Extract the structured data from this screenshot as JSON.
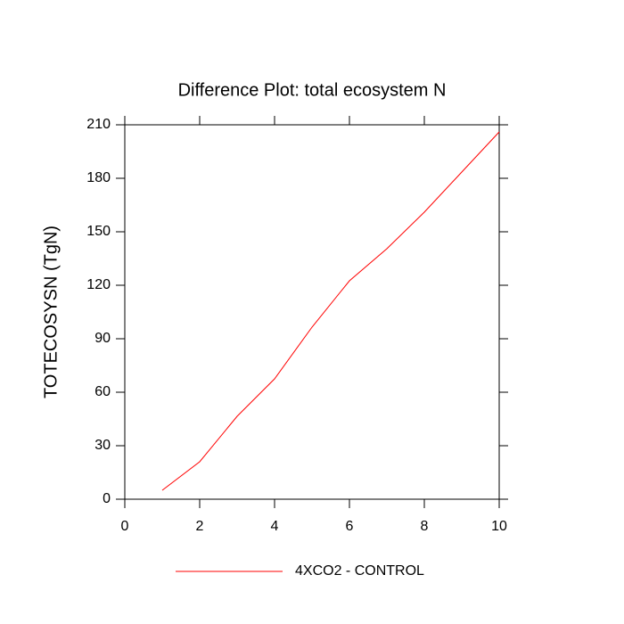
{
  "chart_data": {
    "type": "line",
    "title": "Difference Plot: total ecosystem N",
    "y_label": "TOTECOSYSN  (TgN)",
    "x": [
      1,
      2,
      3,
      4,
      5,
      6,
      7,
      8,
      9,
      10
    ],
    "series": [
      {
        "name": "4XCO2 - CONTROL",
        "color": "#ff0000",
        "values": [
          5,
          21,
          46.5,
          67.5,
          96.5,
          122.5,
          140.5,
          161,
          183.5,
          206
        ]
      }
    ],
    "xlim": [
      0,
      10
    ],
    "xticks": [
      0,
      2,
      4,
      6,
      8,
      10
    ],
    "ylim": [
      0,
      210
    ],
    "yticks": [
      0,
      30,
      60,
      90,
      120,
      150,
      180,
      210
    ],
    "grid": false,
    "legend": "bottom"
  }
}
